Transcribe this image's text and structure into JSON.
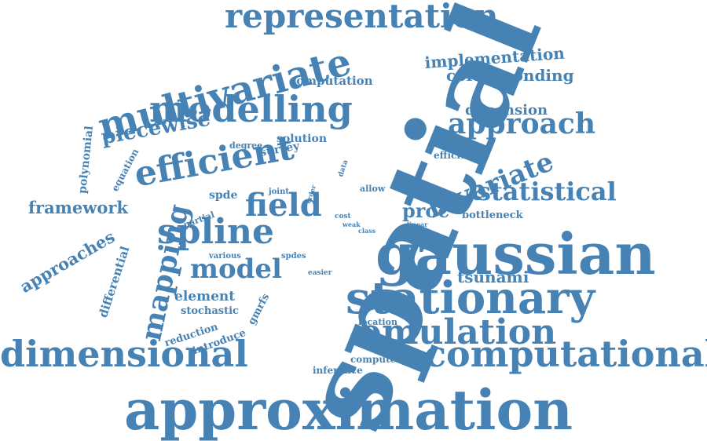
{
  "word_cloud": {
    "color": "#4682b4",
    "words": [
      {
        "text": "spatial"
      },
      {
        "text": "approximation"
      },
      {
        "text": "gaussian"
      },
      {
        "text": "stationary"
      },
      {
        "text": "computational"
      },
      {
        "text": "dimensional"
      },
      {
        "text": "emulation"
      },
      {
        "text": "representation"
      },
      {
        "text": "multivariate"
      },
      {
        "text": "modelling"
      },
      {
        "text": "efficient"
      },
      {
        "text": "spline"
      },
      {
        "text": "field"
      },
      {
        "text": "approach"
      },
      {
        "text": "bivariate"
      },
      {
        "text": "statistical"
      },
      {
        "text": "mapping"
      },
      {
        "text": "model"
      },
      {
        "text": "piecewise"
      },
      {
        "text": "framework"
      },
      {
        "text": "approaches"
      },
      {
        "text": "implementation"
      },
      {
        "text": "corresponding"
      },
      {
        "text": "dimension"
      },
      {
        "text": "proc"
      },
      {
        "text": "tsunami"
      },
      {
        "text": "element"
      },
      {
        "text": "computation"
      },
      {
        "text": "solution"
      },
      {
        "text": "survey"
      },
      {
        "text": "stochastic"
      },
      {
        "text": "differential"
      },
      {
        "text": "polynomial"
      },
      {
        "text": "spde"
      },
      {
        "text": "bottleneck"
      },
      {
        "text": "efficiency"
      },
      {
        "text": "equation"
      },
      {
        "text": "reduction"
      },
      {
        "text": "introduce"
      },
      {
        "text": "gmrfs"
      },
      {
        "text": "computer"
      },
      {
        "text": "inference"
      },
      {
        "text": "location"
      },
      {
        "text": "allow"
      },
      {
        "text": "degree"
      },
      {
        "text": "joint"
      },
      {
        "text": "data"
      },
      {
        "text": "order"
      },
      {
        "text": "partial"
      },
      {
        "text": "various"
      },
      {
        "text": "spdes"
      },
      {
        "text": "easier"
      },
      {
        "text": "cost"
      },
      {
        "text": "weak"
      },
      {
        "text": "class"
      },
      {
        "text": "linear"
      }
    ]
  }
}
